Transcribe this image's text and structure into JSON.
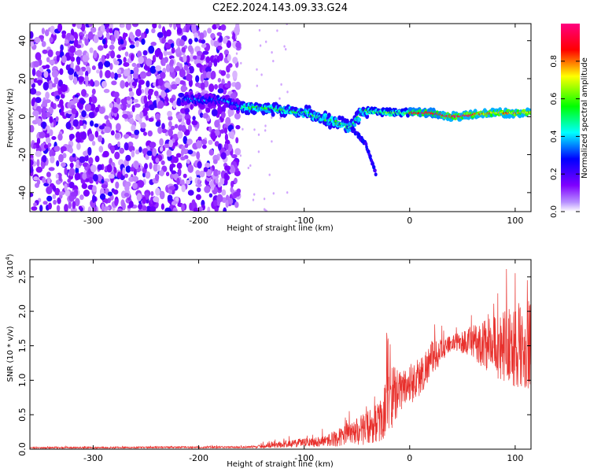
{
  "title": "C2E2.2024.143.09.33.G24",
  "chart_data": [
    {
      "type": "heatmap",
      "xlabel": "Height of straight line (km)",
      "ylabel": "Frequency (Hz)",
      "xlim": [
        -360,
        115
      ],
      "ylim": [
        -50,
        49
      ],
      "xticks": [
        -300,
        -200,
        -100,
        0,
        100
      ],
      "yticks": [
        -40,
        -20,
        0,
        20,
        40
      ],
      "colorbar": {
        "label": "Normalized spectral amplitude",
        "range": [
          0,
          1
        ],
        "ticks": [
          "0.0",
          "0.2",
          "0.4",
          "0.6",
          "0.8"
        ],
        "colors": [
          "#ffffff",
          "#7f00ff",
          "#0000ff",
          "#00ffff",
          "#00ff00",
          "#ffff00",
          "#ff0000",
          "#ff0080"
        ]
      },
      "features": {
        "noise_region_x": [
          -360,
          -165
        ],
        "signal_track": [
          {
            "x": -210,
            "y": 9
          },
          {
            "x": -180,
            "y": 9
          },
          {
            "x": -160,
            "y": 5
          },
          {
            "x": -130,
            "y": 4
          },
          {
            "x": -100,
            "y": 2
          },
          {
            "x": -75,
            "y": -2
          },
          {
            "x": -55,
            "y": -6
          },
          {
            "x": -45,
            "y": 3
          },
          {
            "x": -20,
            "y": 2
          },
          {
            "x": 0,
            "y": 2
          },
          {
            "x": 20,
            "y": 2
          },
          {
            "x": 40,
            "y": 0
          },
          {
            "x": 60,
            "y": 1
          },
          {
            "x": 80,
            "y": 2
          },
          {
            "x": 115,
            "y": 2
          }
        ],
        "branch": [
          {
            "x": -55,
            "y": -6
          },
          {
            "x": -42,
            "y": -14
          },
          {
            "x": -32,
            "y": -30
          }
        ]
      }
    },
    {
      "type": "line",
      "xlabel": "Height of straight line (km)",
      "ylabel": "SNR (10 * v/v)",
      "multiplier": "(x10",
      "multiplier_exp": "4",
      "multiplier_close": ")",
      "xlim": [
        -360,
        115
      ],
      "ylim": [
        0,
        2.75
      ],
      "xticks": [
        -300,
        -200,
        -100,
        0,
        100
      ],
      "yticks": [
        "0.0",
        "0.5",
        "1.0",
        "1.5",
        "2.0",
        "2.5"
      ],
      "color": "#e8302c",
      "envelope": [
        {
          "x": -360,
          "mean": 0.02,
          "spread": 0.01
        },
        {
          "x": -150,
          "mean": 0.03,
          "spread": 0.015
        },
        {
          "x": -120,
          "mean": 0.07,
          "spread": 0.05
        },
        {
          "x": -80,
          "mean": 0.12,
          "spread": 0.08
        },
        {
          "x": -55,
          "mean": 0.22,
          "spread": 0.18
        },
        {
          "x": -40,
          "mean": 0.32,
          "spread": 0.25
        },
        {
          "x": -28,
          "mean": 0.4,
          "spread": 0.3
        },
        {
          "x": -20,
          "mean": 0.7,
          "spread": 0.55
        },
        {
          "x": -10,
          "mean": 0.85,
          "spread": 0.3
        },
        {
          "x": 10,
          "mean": 1.05,
          "spread": 0.3
        },
        {
          "x": 20,
          "mean": 1.3,
          "spread": 0.25
        },
        {
          "x": 40,
          "mean": 1.55,
          "spread": 0.1
        },
        {
          "x": 60,
          "mean": 1.55,
          "spread": 0.25
        },
        {
          "x": 80,
          "mean": 1.5,
          "spread": 0.45
        },
        {
          "x": 100,
          "mean": 1.5,
          "spread": 0.6
        },
        {
          "x": 115,
          "mean": 1.5,
          "spread": 0.7
        }
      ]
    }
  ]
}
